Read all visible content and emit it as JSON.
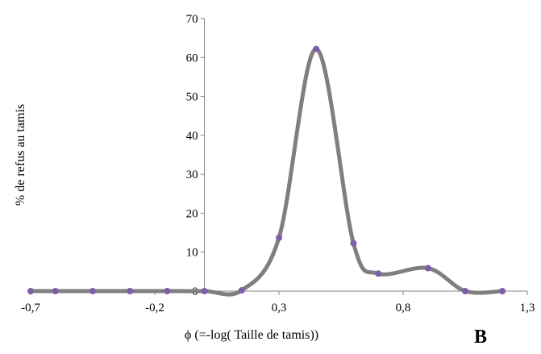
{
  "chart_data": {
    "type": "line",
    "title": "",
    "xlabel": "ϕ (=-log( Taille de tamis))",
    "ylabel": "% de refus au tamis",
    "panel_label": "B",
    "xlim": [
      -0.7,
      1.3
    ],
    "ylim": [
      0,
      70
    ],
    "x_ticks": [
      -0.7,
      -0.2,
      0.3,
      0.8,
      1.3
    ],
    "x_tick_labels": [
      "-0,7",
      "-0,2",
      "0,3",
      "0,8",
      "1,3"
    ],
    "y_ticks": [
      0,
      10,
      20,
      30,
      40,
      50,
      60,
      70
    ],
    "y_tick_labels": [
      "0",
      "10",
      "20",
      "30",
      "40",
      "50",
      "60",
      "70"
    ],
    "grid": false,
    "legend": "none",
    "series": [
      {
        "x": [
          -0.7,
          -0.6,
          -0.45,
          -0.3,
          -0.15,
          0.0,
          0.15,
          0.3,
          0.45,
          0.6,
          0.7,
          0.9,
          1.05,
          1.2
        ],
        "y": [
          0,
          0,
          0,
          0,
          0,
          0,
          0.2,
          13.7,
          62.2,
          12.3,
          4.5,
          5.9,
          0,
          0
        ],
        "line_color": "#7f7f7f",
        "marker_color": "#7b5fa8"
      }
    ]
  }
}
